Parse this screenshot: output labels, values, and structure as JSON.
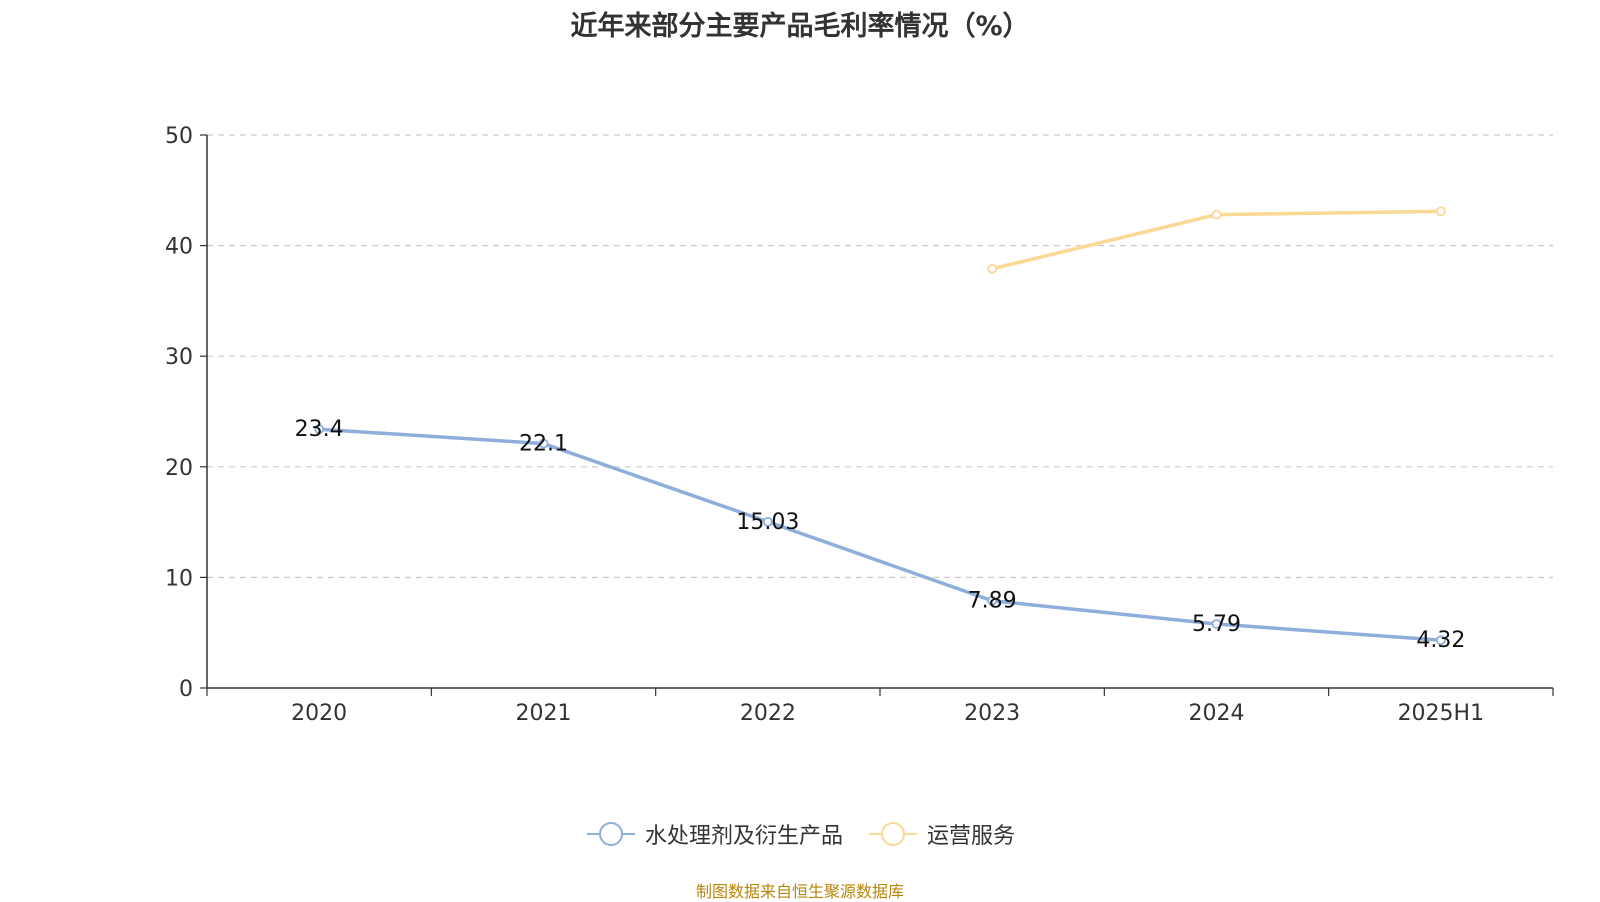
{
  "chart_data": {
    "type": "line",
    "title": "近年来部分主要产品毛利率情况（%）",
    "categories": [
      "2020",
      "2021",
      "2022",
      "2023",
      "2024",
      "2025H1"
    ],
    "ylim": [
      0,
      50
    ],
    "yticks": [
      0,
      10,
      20,
      30,
      40,
      50
    ],
    "grid": true,
    "legend_position": "bottom",
    "series": [
      {
        "name": "水处理剂及衍生产品",
        "color": "#8eaedb",
        "values": [
          23.4,
          22.1,
          15.03,
          7.89,
          5.79,
          4.32
        ],
        "labels": [
          "23.4",
          "22.1",
          "15.03",
          "7.89",
          "5.79",
          "4.32"
        ],
        "show_labels": true
      },
      {
        "name": "运营服务",
        "color": "#fbd894",
        "values": [
          null,
          null,
          null,
          37.9,
          42.8,
          43.1
        ],
        "show_labels": false
      }
    ]
  },
  "source": "制图数据来自恒生聚源数据库"
}
